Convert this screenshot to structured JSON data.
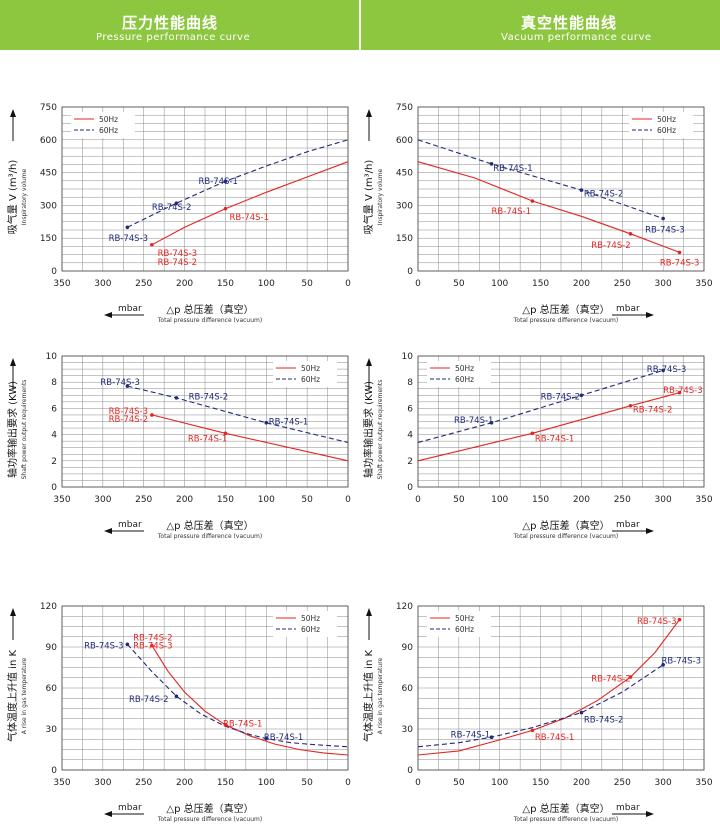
{
  "headers": {
    "left": {
      "title_zh": "压力性能曲线",
      "title_en": "Pressure performance curve"
    },
    "right": {
      "title_zh": "真空性能曲线",
      "title_en": "Vacuum performance curve"
    }
  },
  "colors": {
    "s50": "#e52421",
    "s60": "#1f2a7a",
    "grid": "#8a8a8a",
    "header": "#8dc63f"
  },
  "chart_data": [
    {
      "type": "line",
      "panel": "pressure-flow",
      "xlabel_zh": "△p  总压差（真空）",
      "xlabel_en": "Total pressure difference (vacuum)",
      "x_unit": "mbar",
      "ylabel_zh": "吸气量 V (m³/h)",
      "ylabel_en": "Inspiratory volume",
      "xlim": [
        350,
        0
      ],
      "xticks": [
        350,
        300,
        250,
        200,
        150,
        100,
        50,
        0
      ],
      "ylim": [
        0,
        750
      ],
      "yticks": [
        0,
        150,
        300,
        450,
        600,
        750
      ],
      "grid": true,
      "legend_position": "top-left",
      "series": [
        {
          "name": "50Hz",
          "style": "solid",
          "points": [
            [
              240,
              120
            ],
            [
              200,
              200
            ],
            [
              150,
              285
            ],
            [
              100,
              360
            ],
            [
              50,
              430
            ],
            [
              0,
              500
            ]
          ]
        },
        {
          "name": "60Hz",
          "style": "dashed",
          "points": [
            [
              270,
              200
            ],
            [
              210,
              310
            ],
            [
              150,
              410
            ],
            [
              100,
              480
            ],
            [
              50,
              545
            ],
            [
              0,
              600
            ]
          ]
        }
      ],
      "markers": [
        {
          "series": 0,
          "x": 240,
          "y": 120
        },
        {
          "series": 0,
          "x": 150,
          "y": 285
        },
        {
          "series": 1,
          "x": 270,
          "y": 200
        },
        {
          "series": 1,
          "x": 210,
          "y": 310
        },
        {
          "series": 1,
          "x": 150,
          "y": 410
        }
      ],
      "labels": [
        {
          "text": "RB-74S-3",
          "series": 0,
          "x": 233,
          "y": 82
        },
        {
          "text": "RB-74S-2",
          "series": 0,
          "x": 233,
          "y": 42
        },
        {
          "text": "RB-74S-1",
          "series": 0,
          "x": 145,
          "y": 248
        },
        {
          "text": "RB-74S-3",
          "series": 1,
          "x": 293,
          "y": 152
        },
        {
          "text": "RB-74S-2",
          "series": 1,
          "x": 240,
          "y": 292
        },
        {
          "text": "RB-74S-1",
          "series": 1,
          "x": 183,
          "y": 412
        }
      ]
    },
    {
      "type": "line",
      "panel": "vacuum-flow",
      "xlabel_zh": "△p  总压差（真空）",
      "xlabel_en": "Total pressure difference (vacuum)",
      "x_unit": "mbar",
      "ylabel_zh": "吸气量 V (m³/h)",
      "ylabel_en": "Inspiratory volume",
      "xlim": [
        0,
        350
      ],
      "xticks": [
        0,
        50,
        100,
        150,
        200,
        250,
        300,
        350
      ],
      "ylim": [
        0,
        750
      ],
      "yticks": [
        0,
        150,
        300,
        450,
        600,
        750
      ],
      "grid": true,
      "legend_position": "top-right",
      "series": [
        {
          "name": "50Hz",
          "style": "solid",
          "points": [
            [
              0,
              500
            ],
            [
              70,
              425
            ],
            [
              140,
              320
            ],
            [
              200,
              250
            ],
            [
              260,
              170
            ],
            [
              320,
              85
            ]
          ]
        },
        {
          "name": "60Hz",
          "style": "dashed",
          "points": [
            [
              0,
              600
            ],
            [
              90,
              490
            ],
            [
              200,
              370
            ],
            [
              300,
              240
            ]
          ]
        }
      ],
      "markers": [
        {
          "series": 0,
          "x": 140,
          "y": 320
        },
        {
          "series": 0,
          "x": 260,
          "y": 170
        },
        {
          "series": 0,
          "x": 320,
          "y": 85
        },
        {
          "series": 1,
          "x": 90,
          "y": 490
        },
        {
          "series": 1,
          "x": 200,
          "y": 370
        },
        {
          "series": 1,
          "x": 300,
          "y": 240
        }
      ],
      "labels": [
        {
          "text": "RB-74S-1",
          "series": 0,
          "x": 90,
          "y": 275
        },
        {
          "text": "RB-74S-2",
          "series": 0,
          "x": 212,
          "y": 120
        },
        {
          "text": "RB-74S-3",
          "series": 0,
          "x": 296,
          "y": 40
        },
        {
          "text": "RB-74S-1",
          "series": 1,
          "x": 92,
          "y": 470
        },
        {
          "text": "RB-74S-2",
          "series": 1,
          "x": 203,
          "y": 355
        },
        {
          "text": "RB-74S-3",
          "series": 1,
          "x": 278,
          "y": 190
        }
      ]
    },
    {
      "type": "line",
      "panel": "pressure-power",
      "xlabel_zh": "△p  总压差（真空）",
      "xlabel_en": "Total pressure difference (vacuum)",
      "x_unit": "mbar",
      "ylabel_zh": "轴功率输出要求 (KW)",
      "ylabel_en": "Shaft power output requirements",
      "xlim": [
        350,
        0
      ],
      "xticks": [
        350,
        300,
        250,
        200,
        150,
        100,
        50,
        0
      ],
      "ylim": [
        0,
        10
      ],
      "yticks": [
        0,
        2,
        4,
        6,
        8,
        10
      ],
      "grid": true,
      "legend_position": "top-right",
      "series": [
        {
          "name": "50Hz",
          "style": "solid",
          "points": [
            [
              240,
              5.5
            ],
            [
              150,
              4.1
            ],
            [
              0,
              2.0
            ]
          ]
        },
        {
          "name": "60Hz",
          "style": "dashed",
          "points": [
            [
              270,
              7.7
            ],
            [
              210,
              6.8
            ],
            [
              100,
              4.9
            ],
            [
              0,
              3.4
            ]
          ]
        }
      ],
      "markers": [
        {
          "series": 0,
          "x": 240,
          "y": 5.5
        },
        {
          "series": 0,
          "x": 150,
          "y": 4.1
        },
        {
          "series": 1,
          "x": 270,
          "y": 7.7
        },
        {
          "series": 1,
          "x": 210,
          "y": 6.8
        },
        {
          "series": 1,
          "x": 100,
          "y": 4.9
        }
      ],
      "labels": [
        {
          "text": "RB-74S-3",
          "series": 0,
          "x": 293,
          "y": 5.8
        },
        {
          "text": "RB-74S-2",
          "series": 0,
          "x": 293,
          "y": 5.2
        },
        {
          "text": "RB-74S-1",
          "series": 0,
          "x": 196,
          "y": 3.7
        },
        {
          "text": "RB-74S-3",
          "series": 1,
          "x": 303,
          "y": 8.0
        },
        {
          "text": "RB-74S-2",
          "series": 1,
          "x": 195,
          "y": 6.9
        },
        {
          "text": "RB-74S-1",
          "series": 1,
          "x": 97,
          "y": 5.0
        }
      ]
    },
    {
      "type": "line",
      "panel": "vacuum-power",
      "xlabel_zh": "△p  总压差（真空）",
      "xlabel_en": "Total pressure difference (vacuum)",
      "x_unit": "mbar",
      "ylabel_zh": "轴功率输出要求 (KW)",
      "ylabel_en": "Shaft power output requirements",
      "xlim": [
        0,
        350
      ],
      "xticks": [
        0,
        50,
        100,
        150,
        200,
        250,
        300,
        350
      ],
      "ylim": [
        0,
        10
      ],
      "yticks": [
        0,
        2,
        4,
        6,
        8,
        10
      ],
      "grid": true,
      "legend_position": "top-left",
      "series": [
        {
          "name": "50Hz",
          "style": "solid",
          "points": [
            [
              0,
              2.0
            ],
            [
              140,
              4.1
            ],
            [
              260,
              6.2
            ],
            [
              320,
              7.2
            ]
          ]
        },
        {
          "name": "60Hz",
          "style": "dashed",
          "points": [
            [
              0,
              3.4
            ],
            [
              90,
              4.9
            ],
            [
              200,
              7.0
            ],
            [
              300,
              8.9
            ]
          ]
        }
      ],
      "markers": [
        {
          "series": 0,
          "x": 140,
          "y": 4.1
        },
        {
          "series": 0,
          "x": 260,
          "y": 6.2
        },
        {
          "series": 0,
          "x": 320,
          "y": 7.2
        },
        {
          "series": 1,
          "x": 90,
          "y": 4.9
        },
        {
          "series": 1,
          "x": 200,
          "y": 7.0
        },
        {
          "series": 1,
          "x": 300,
          "y": 8.9
        }
      ],
      "labels": [
        {
          "text": "RB-74S-1",
          "series": 0,
          "x": 143,
          "y": 3.7
        },
        {
          "text": "RB-74S-2",
          "series": 0,
          "x": 263,
          "y": 5.9
        },
        {
          "text": "RB-74S-3",
          "series": 0,
          "x": 300,
          "y": 7.4
        },
        {
          "text": "RB-74S-1",
          "series": 1,
          "x": 44,
          "y": 5.1
        },
        {
          "text": "RB-74S-2",
          "series": 1,
          "x": 150,
          "y": 6.9
        },
        {
          "text": "RB-74S-3",
          "series": 1,
          "x": 280,
          "y": 9.0
        }
      ]
    },
    {
      "type": "line",
      "panel": "pressure-temperature",
      "xlabel_zh": "△p  总压差（真空）",
      "xlabel_en": "Total pressure difference (vacuum)",
      "x_unit": "mbar",
      "ylabel_zh": "气体温度上升值 in K",
      "ylabel_en": "A rise in gas temperature",
      "xlim": [
        350,
        0
      ],
      "xticks": [
        350,
        300,
        250,
        200,
        150,
        100,
        50,
        0
      ],
      "ylim": [
        0,
        120
      ],
      "yticks": [
        0,
        30,
        60,
        90,
        120
      ],
      "grid": true,
      "legend_position": "top-right",
      "series": [
        {
          "name": "50Hz",
          "style": "solid",
          "points": [
            [
              240,
              91
            ],
            [
              220,
              72
            ],
            [
              200,
              57
            ],
            [
              175,
              43
            ],
            [
              150,
              33
            ],
            [
              120,
              25
            ],
            [
              90,
              19
            ],
            [
              60,
              15
            ],
            [
              30,
              12.5
            ],
            [
              0,
              11
            ]
          ]
        },
        {
          "name": "60Hz",
          "style": "dashed",
          "points": [
            [
              270,
              92
            ],
            [
              240,
              72
            ],
            [
              210,
              54
            ],
            [
              180,
              41
            ],
            [
              150,
              32
            ],
            [
              120,
              26
            ],
            [
              100,
              23
            ],
            [
              70,
              20
            ],
            [
              40,
              18.5
            ],
            [
              0,
              17
            ]
          ]
        }
      ],
      "markers": [
        {
          "series": 0,
          "x": 240,
          "y": 91
        },
        {
          "series": 0,
          "x": 150,
          "y": 33
        },
        {
          "series": 1,
          "x": 270,
          "y": 92
        },
        {
          "series": 1,
          "x": 210,
          "y": 54
        },
        {
          "series": 1,
          "x": 100,
          "y": 23
        }
      ],
      "labels": [
        {
          "text": "RB-74S-2",
          "series": 0,
          "x": 263,
          "y": 97
        },
        {
          "text": "RB-74S-3",
          "series": 0,
          "x": 263,
          "y": 91
        },
        {
          "text": "RB-74S-1",
          "series": 0,
          "x": 153,
          "y": 34
        },
        {
          "text": "RB-74S-3",
          "series": 1,
          "x": 323,
          "y": 91
        },
        {
          "text": "RB-74S-2",
          "series": 1,
          "x": 268,
          "y": 52
        },
        {
          "text": "RB-74S-1",
          "series": 1,
          "x": 103,
          "y": 24
        }
      ]
    },
    {
      "type": "line",
      "panel": "vacuum-temperature",
      "xlabel_zh": "△p  总压差（真空）",
      "xlabel_en": "Total pressure difference (vacuum)",
      "x_unit": "mbar",
      "ylabel_zh": "气体温度上升值 in K",
      "ylabel_en": "A rise in gas temperature",
      "xlim": [
        0,
        350
      ],
      "xticks": [
        0,
        50,
        100,
        150,
        200,
        250,
        300,
        350
      ],
      "ylim": [
        0,
        120
      ],
      "yticks": [
        0,
        30,
        60,
        90,
        120
      ],
      "grid": true,
      "legend_position": "top-left",
      "series": [
        {
          "name": "50Hz",
          "style": "solid",
          "points": [
            [
              0,
              11
            ],
            [
              50,
              14
            ],
            [
              100,
              22
            ],
            [
              140,
              29
            ],
            [
              180,
              38
            ],
            [
              220,
              51
            ],
            [
              260,
              68
            ],
            [
              290,
              86
            ],
            [
              320,
              110
            ]
          ]
        },
        {
          "name": "60Hz",
          "style": "dashed",
          "points": [
            [
              0,
              17
            ],
            [
              50,
              20
            ],
            [
              90,
              24
            ],
            [
              140,
              31
            ],
            [
              200,
              42
            ],
            [
              250,
              57
            ],
            [
              300,
              77
            ]
          ]
        }
      ],
      "markers": [
        {
          "series": 0,
          "x": 140,
          "y": 29
        },
        {
          "series": 0,
          "x": 260,
          "y": 68
        },
        {
          "series": 0,
          "x": 320,
          "y": 110
        },
        {
          "series": 1,
          "x": 90,
          "y": 24
        },
        {
          "series": 1,
          "x": 200,
          "y": 42
        },
        {
          "series": 1,
          "x": 300,
          "y": 77
        }
      ],
      "labels": [
        {
          "text": "RB-74S-1",
          "series": 0,
          "x": 143,
          "y": 24
        },
        {
          "text": "RB-74S-2",
          "series": 0,
          "x": 212,
          "y": 67
        },
        {
          "text": "RB-74S-3",
          "series": 0,
          "x": 268,
          "y": 109
        },
        {
          "text": "RB-74S-1",
          "series": 1,
          "x": 40,
          "y": 26
        },
        {
          "text": "RB-74S-2",
          "series": 1,
          "x": 203,
          "y": 37
        },
        {
          "text": "RB-74S-3",
          "series": 1,
          "x": 298,
          "y": 80
        }
      ]
    }
  ]
}
